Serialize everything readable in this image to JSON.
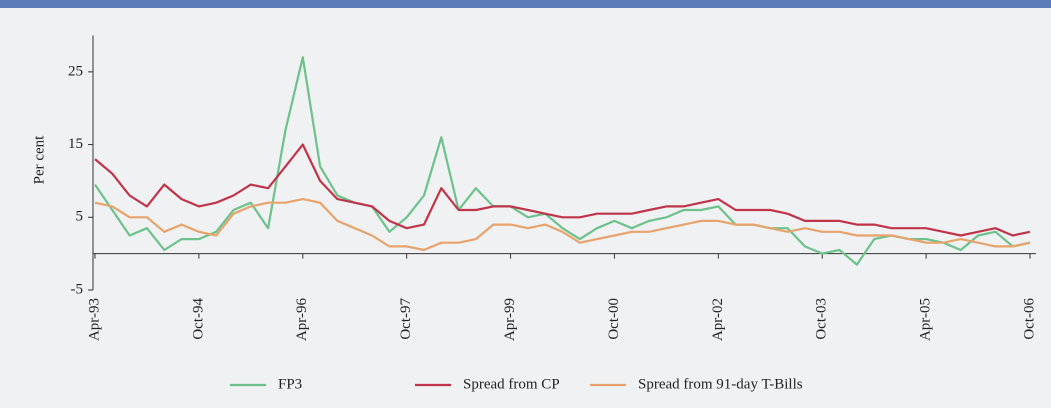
{
  "chart_data": {
    "type": "line",
    "y_label": "Per cent",
    "categories": [
      "Apr-93",
      null,
      null,
      null,
      null,
      null,
      "Oct-94",
      null,
      null,
      null,
      null,
      null,
      "Apr-96",
      null,
      null,
      null,
      null,
      null,
      "Oct-97",
      null,
      null,
      null,
      null,
      null,
      "Apr-99",
      null,
      null,
      null,
      null,
      null,
      "Oct-00",
      null,
      null,
      null,
      null,
      null,
      "Apr-02",
      null,
      null,
      null,
      null,
      null,
      "Oct-03",
      null,
      null,
      null,
      null,
      null,
      "Apr-05",
      null,
      null,
      null,
      null,
      null,
      "Oct-06"
    ],
    "series": [
      {
        "name": "FP3",
        "color": "#6cc28a",
        "values": [
          9.5,
          6,
          2.5,
          3.5,
          0.5,
          2,
          2,
          3,
          6,
          7,
          3.5,
          17,
          27,
          12,
          8,
          7,
          6.5,
          3,
          5,
          8,
          16,
          6,
          9,
          6.5,
          6.5,
          5,
          5.5,
          3.5,
          2,
          3.5,
          4.5,
          3.5,
          4.5,
          5,
          6,
          6,
          6.5,
          4,
          4,
          3.5,
          3.5,
          1,
          0,
          0.5,
          -1.5,
          2,
          2.5,
          2,
          2,
          1.5,
          0.5,
          2.5,
          3,
          1,
          1.5
        ]
      },
      {
        "name": "Spread from CP",
        "color": "#c0344a",
        "values": [
          13,
          11,
          8,
          6.5,
          9.5,
          7.5,
          6.5,
          7,
          8,
          9.5,
          9,
          12,
          15,
          10,
          7.5,
          7,
          6.5,
          4.5,
          3.5,
          4,
          9,
          6,
          6,
          6.5,
          6.5,
          6,
          5.5,
          5,
          5,
          5.5,
          5.5,
          5.5,
          6,
          6.5,
          6.5,
          7,
          7.5,
          6,
          6,
          6,
          5.5,
          4.5,
          4.5,
          4.5,
          4,
          4,
          3.5,
          3.5,
          3.5,
          3,
          2.5,
          3,
          3.5,
          2.5,
          3
        ]
      },
      {
        "name": "Spread from 91-day T-Bills",
        "color": "#e8a36c",
        "values": [
          7,
          6.5,
          5,
          5,
          3,
          4,
          3,
          2.5,
          5.5,
          6.5,
          7,
          7,
          7.5,
          7,
          4.5,
          3.5,
          2.5,
          1,
          1,
          0.5,
          1.5,
          1.5,
          2,
          4,
          4,
          3.5,
          4,
          3,
          1.5,
          2,
          2.5,
          3,
          3,
          3.5,
          4,
          4.5,
          4.5,
          4,
          4,
          3.5,
          3,
          3.5,
          3,
          3,
          2.5,
          2.5,
          2.5,
          2,
          1.5,
          1.5,
          2,
          1.5,
          1,
          1,
          1.5
        ]
      }
    ],
    "ylim": [
      -5,
      30
    ],
    "yticks": [
      -5,
      5,
      15,
      25
    ],
    "grid": false,
    "legend": "bottom"
  }
}
